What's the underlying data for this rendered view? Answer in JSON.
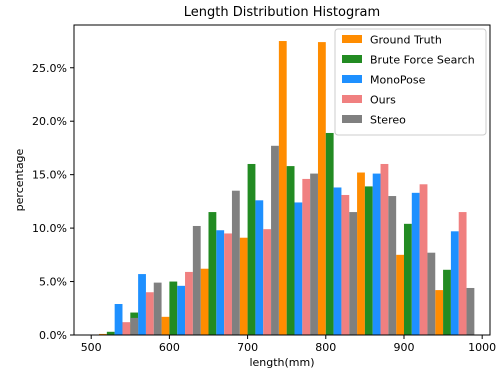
{
  "chart_data": {
    "type": "bar",
    "title": "Length Distribution Histogram",
    "xlabel": "length(mm)",
    "ylabel": "percentage",
    "xlim": [
      478,
      1010
    ],
    "ylim": [
      0,
      0.29
    ],
    "xticks": [
      500,
      600,
      700,
      800,
      900,
      1000
    ],
    "xtick_labels": [
      "500",
      "600",
      "700",
      "800",
      "900",
      "1000"
    ],
    "yticks": [
      0,
      0.05,
      0.1,
      0.15,
      0.2,
      0.25
    ],
    "ytick_labels": [
      "0.0%",
      "5.0%",
      "10.0%",
      "15.0%",
      "20.0%",
      "25.0%"
    ],
    "bin_edges": [
      510,
      540,
      590,
      640,
      690,
      740,
      790,
      840,
      890,
      940,
      990
    ],
    "bin_width": 50,
    "legend_position": "top-right",
    "grid": false,
    "series": [
      {
        "name": "Ground Truth",
        "color": "#ff8c00",
        "values": [
          0.001,
          0.01,
          0.017,
          0.062,
          0.091,
          0.275,
          0.274,
          0.152,
          0.075,
          0.042
        ]
      },
      {
        "name": "Brute Force Search",
        "color": "#228b22",
        "values": [
          0.003,
          0.021,
          0.05,
          0.115,
          0.16,
          0.158,
          0.189,
          0.139,
          0.104,
          0.061
        ]
      },
      {
        "name": "MonoPose",
        "color": "#1e90ff",
        "values": [
          0.029,
          0.057,
          0.046,
          0.098,
          0.126,
          0.124,
          0.138,
          0.151,
          0.133,
          0.097
        ]
      },
      {
        "name": "Ours",
        "color": "#f08080",
        "values": [
          0.012,
          0.04,
          0.059,
          0.095,
          0.099,
          0.146,
          0.131,
          0.16,
          0.141,
          0.115
        ]
      },
      {
        "name": "Stereo",
        "color": "#808080",
        "values": [
          0.016,
          0.049,
          0.102,
          0.135,
          0.177,
          0.151,
          0.115,
          0.13,
          0.077,
          0.044
        ]
      }
    ]
  }
}
